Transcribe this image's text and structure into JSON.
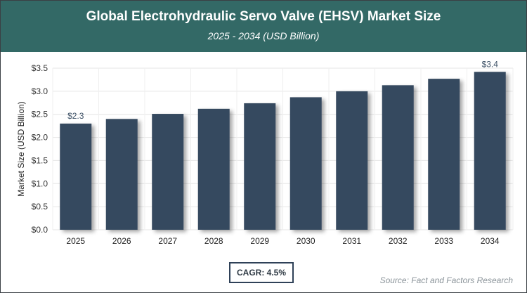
{
  "header": {
    "title": "Global Electrohydraulic Servo Valve (EHSV) Market Size",
    "subtitle": "2025 - 2034 (USD Billion)"
  },
  "chart_data": {
    "type": "bar",
    "title": "Global Electrohydraulic Servo Valve (EHSV) Market Size",
    "subtitle": "2025 - 2034 (USD Billion)",
    "categories": [
      "2025",
      "2026",
      "2027",
      "2028",
      "2029",
      "2030",
      "2031",
      "2032",
      "2033",
      "2034"
    ],
    "values": [
      2.3,
      2.4,
      2.51,
      2.62,
      2.74,
      2.87,
      3.0,
      3.13,
      3.27,
      3.42
    ],
    "data_labels": {
      "0": "$2.3",
      "9": "$3.4"
    },
    "ylabel": "Market Size (USD Billion)",
    "xlabel": "",
    "ylim": [
      0,
      3.5
    ],
    "yticks": [
      "$0.0",
      "$0.5",
      "$1.0",
      "$1.5",
      "$2.0",
      "$2.5",
      "$3.0",
      "$3.5"
    ],
    "grid": true,
    "bar_color": "#36495f"
  },
  "footer": {
    "cagr": "CAGR: 4.5%",
    "source": "Source: Fact and Factors Research"
  }
}
